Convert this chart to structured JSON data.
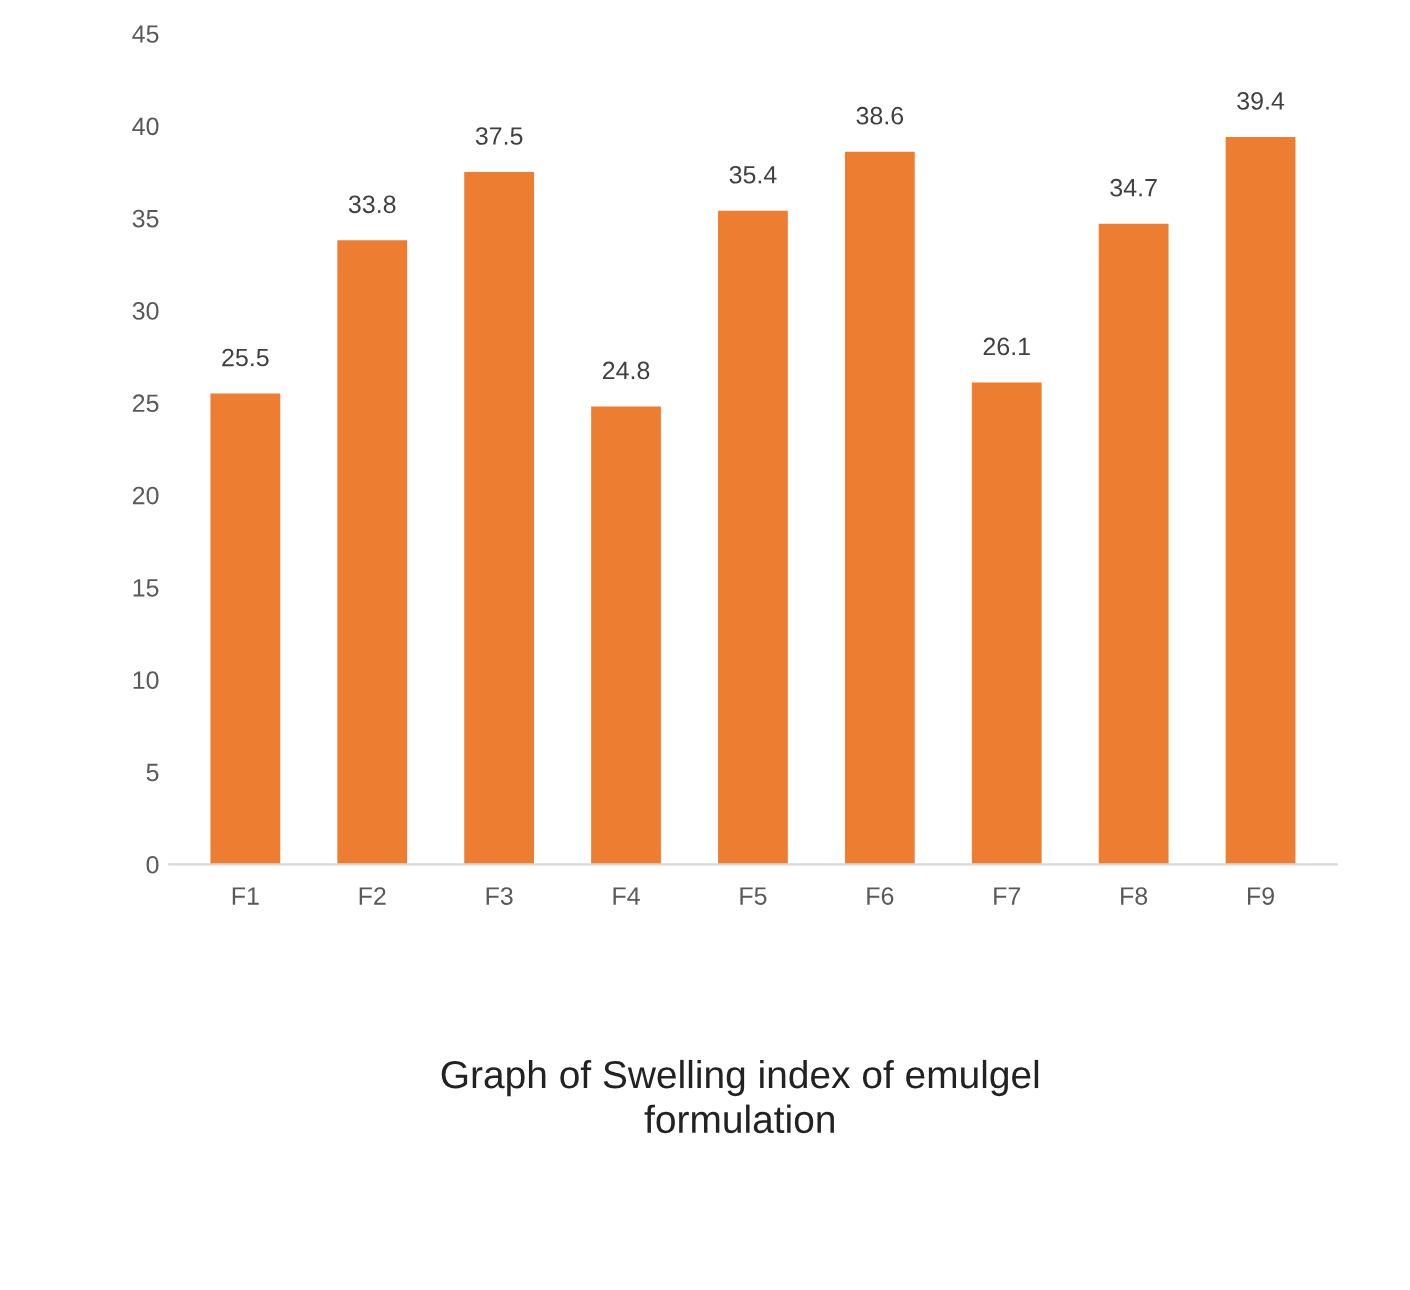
{
  "chart_data": {
    "type": "bar",
    "title": "Graph of Swelling index of emulgel\nformulation",
    "categories": [
      "F1",
      "F2",
      "F3",
      "F4",
      "F5",
      "F6",
      "F7",
      "F8",
      "F9"
    ],
    "values": [
      25.5,
      33.8,
      37.5,
      24.8,
      35.4,
      38.6,
      26.1,
      34.7,
      39.4
    ],
    "color": "#ed7d31",
    "ylim": [
      0,
      45
    ],
    "yticks": [
      0,
      5,
      10,
      15,
      20,
      25,
      30,
      35,
      40,
      45
    ],
    "data_labels": true,
    "grid": false,
    "legend": false
  }
}
